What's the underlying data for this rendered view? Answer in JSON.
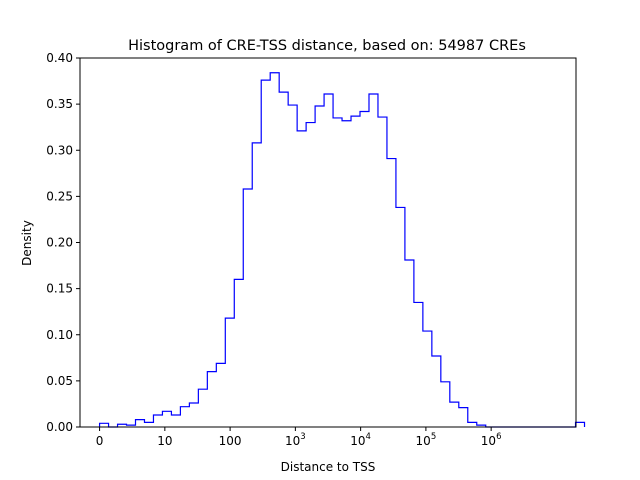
{
  "chart_data": {
    "type": "histogram",
    "title": "Histogram of CRE-TSS distance, based on: 54987 CREs",
    "xlabel": "Distance to TSS",
    "ylabel": "Density",
    "x_scale": "symlog",
    "xlim": [
      -0.3,
      7.3
    ],
    "ylim": [
      0.0,
      0.4
    ],
    "y_ticks": [
      "0.00",
      "0.05",
      "0.10",
      "0.15",
      "0.20",
      "0.25",
      "0.30",
      "0.35",
      "0.40"
    ],
    "x_ticks": [
      {
        "value": 0,
        "label": "0",
        "exp": ""
      },
      {
        "value": 1,
        "label": "10",
        "exp": ""
      },
      {
        "value": 2,
        "label": "100",
        "exp": ""
      },
      {
        "value": 3,
        "label": "10",
        "exp": "3"
      },
      {
        "value": 4,
        "label": "10",
        "exp": "4"
      },
      {
        "value": 5,
        "label": "10",
        "exp": "5"
      },
      {
        "value": 6,
        "label": "10",
        "exp": "6"
      }
    ],
    "bin_start": 0.0,
    "bin_width": 0.1376,
    "densities": [
      0.004,
      0.0,
      0.003,
      0.002,
      0.008,
      0.005,
      0.013,
      0.017,
      0.013,
      0.022,
      0.026,
      0.041,
      0.06,
      0.069,
      0.118,
      0.16,
      0.258,
      0.308,
      0.376,
      0.384,
      0.363,
      0.349,
      0.321,
      0.33,
      0.348,
      0.361,
      0.335,
      0.332,
      0.337,
      0.342,
      0.361,
      0.336,
      0.291,
      0.238,
      0.181,
      0.135,
      0.104,
      0.077,
      0.049,
      0.027,
      0.021,
      0.005,
      0.002,
      0.0,
      0.0,
      0.0,
      0.0,
      0.0,
      0.0,
      0.0,
      0.0,
      0.0,
      0.0,
      0.005
    ],
    "line_color": "#0000ff",
    "grid": false,
    "legend": "none"
  }
}
